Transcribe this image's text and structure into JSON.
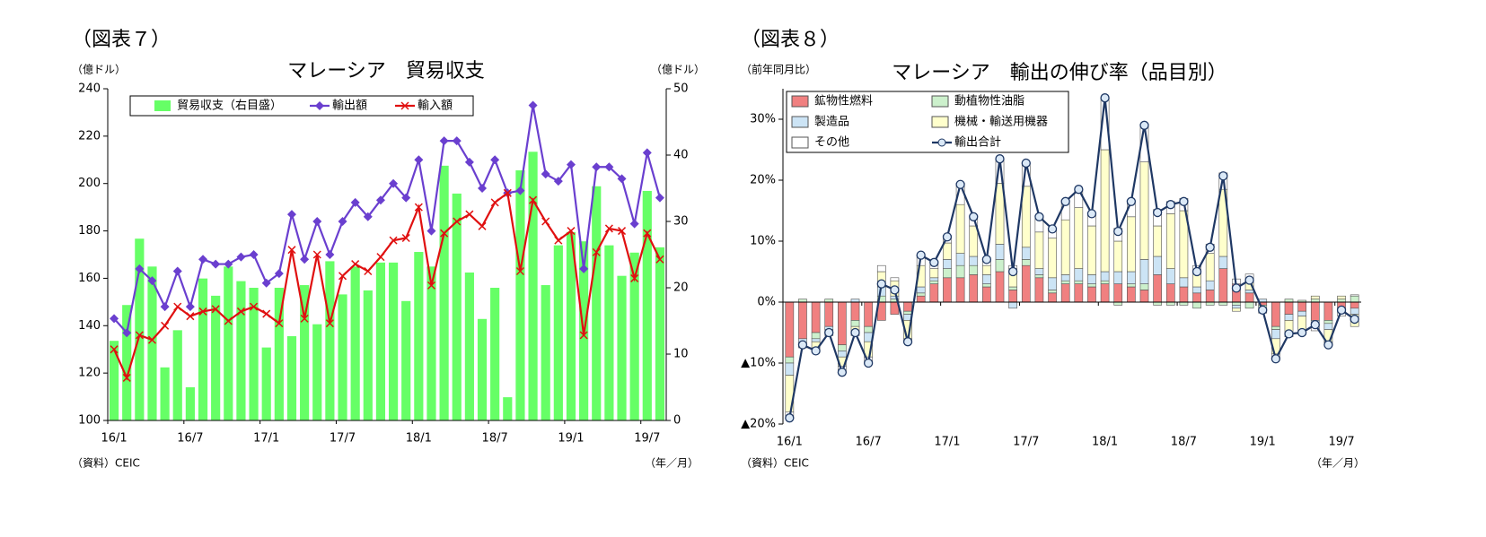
{
  "chart_data": [
    {
      "type": "bar_line",
      "figure_label": "（図表７）",
      "title": "マレーシア　貿易収支",
      "y_unit": "（億ドル）",
      "y2_unit": "（億ドル）",
      "source": "（資料）CEIC",
      "x_unit": "（年／月）",
      "categories": [
        "16/1",
        null,
        null,
        null,
        null,
        null,
        "16/7",
        null,
        null,
        null,
        null,
        null,
        "17/1",
        null,
        null,
        null,
        null,
        null,
        "17/7",
        null,
        null,
        null,
        null,
        null,
        "18/1",
        null,
        null,
        null,
        null,
        null,
        "18/7",
        null,
        null,
        null,
        null,
        null,
        "19/1",
        null,
        null,
        null,
        null,
        null,
        "19/7",
        null
      ],
      "ylim": [
        100,
        240
      ],
      "yticks": [
        100,
        120,
        140,
        160,
        180,
        200,
        220,
        240
      ],
      "y2lim": [
        0,
        50
      ],
      "y2ticks": [
        0,
        10,
        20,
        30,
        40,
        50
      ],
      "grid": false,
      "legend": "top",
      "series": [
        {
          "name": "貿易収支（右目盛）",
          "kind": "bar",
          "axis": "y2",
          "color": "#66ff66",
          "values": [
            12,
            17.4,
            27.4,
            23.2,
            8,
            13.6,
            5,
            21.4,
            18.8,
            23.2,
            21,
            20,
            11,
            20,
            12.7,
            20.4,
            14.5,
            24,
            19,
            23.2,
            19.6,
            23.8,
            23.8,
            18,
            25.4,
            23.2,
            38.4,
            34.2,
            22.3,
            15.3,
            20,
            3.5,
            37.7,
            40.5,
            20.4,
            26.4,
            28.4,
            27,
            35.3,
            26.4,
            21.8,
            25.3,
            34.6,
            26.1
          ]
        },
        {
          "name": "輸出額",
          "kind": "line",
          "marker": "diamond",
          "color": "#6a3fcf",
          "values": [
            143,
            137,
            164,
            159,
            148,
            163,
            148,
            168,
            166,
            166,
            169,
            170,
            158,
            162,
            187,
            168,
            184,
            170,
            184,
            192,
            186,
            193,
            200,
            194,
            210,
            180,
            218,
            218,
            209,
            198,
            210,
            196,
            197,
            233,
            204,
            201,
            208,
            164,
            207,
            207,
            202,
            183,
            213,
            194
          ]
        },
        {
          "name": "輸入額",
          "kind": "line",
          "marker": "x",
          "color": "#e01010",
          "values": [
            130,
            118,
            136,
            134,
            140,
            148,
            144,
            146,
            147,
            142,
            146,
            148,
            145,
            141,
            172,
            143,
            170,
            141,
            161,
            166,
            163,
            169,
            176,
            177,
            190,
            157,
            179,
            184,
            187,
            182,
            192,
            196,
            163,
            193,
            184,
            176,
            180,
            136,
            171,
            181,
            180,
            160,
            179,
            168
          ]
        }
      ]
    },
    {
      "type": "stacked_bar_line",
      "figure_label": "（図表８）",
      "title": "マレーシア　輸出の伸び率（品目別）",
      "y_unit": "（前年同月比）",
      "source": "（資料）CEIC",
      "x_unit": "（年／月）",
      "categories": [
        "16/1",
        null,
        null,
        null,
        null,
        null,
        "16/7",
        null,
        null,
        null,
        null,
        null,
        "17/1",
        null,
        null,
        null,
        null,
        null,
        "17/7",
        null,
        null,
        null,
        null,
        null,
        "18/1",
        null,
        null,
        null,
        null,
        null,
        "18/7",
        null,
        null,
        null,
        null,
        null,
        "19/1",
        null,
        null,
        null,
        null,
        null,
        "19/7",
        null
      ],
      "ylim": [
        -20,
        35
      ],
      "yticks": [
        {
          "value": -20,
          "label": "▲20%"
        },
        {
          "value": -10,
          "label": "▲10%"
        },
        {
          "value": 0,
          "label": "0%"
        },
        {
          "value": 10,
          "label": "10%"
        },
        {
          "value": 20,
          "label": "20%"
        },
        {
          "value": 30,
          "label": "30%"
        }
      ],
      "grid": false,
      "legend": "top-left",
      "series": [
        {
          "name": "鉱物性燃料",
          "kind": "bar",
          "color": "#f08080",
          "values": [
            -9,
            -6,
            -5,
            -4,
            -7,
            -3,
            -4,
            -3,
            -2,
            -1.5,
            1,
            3,
            4,
            4,
            4.5,
            2.5,
            5,
            2,
            6,
            4,
            1.5,
            3,
            3,
            2.5,
            3,
            3,
            2.5,
            2,
            4.5,
            3,
            2.5,
            1.5,
            2,
            5.5,
            3,
            1.5,
            -0.5,
            -4,
            -2,
            -1.5,
            -3,
            -3,
            -1,
            -1
          ]
        },
        {
          "name": "動植物性油脂",
          "kind": "bar",
          "color": "#ccf0cc",
          "values": [
            -1,
            0.5,
            -1,
            0.5,
            -1,
            -1,
            -1,
            1,
            0.5,
            -0.5,
            0.5,
            0.5,
            1.5,
            2,
            1.5,
            0.5,
            2,
            0.5,
            1,
            0.5,
            0.5,
            0.5,
            0.5,
            0.5,
            0.5,
            -0.5,
            0.5,
            1,
            -0.5,
            -0.5,
            -0.5,
            -1,
            -0.5,
            -0.5,
            -0.5,
            -1,
            -0.5,
            -0.5,
            0.5,
            0.3,
            0.5,
            -0.5,
            0.5,
            1
          ]
        },
        {
          "name": "製造品",
          "kind": "bar",
          "color": "#cce4f5",
          "values": [
            -2,
            -1,
            -0.5,
            -0.5,
            -1,
            0.5,
            -1.5,
            1.5,
            0.5,
            -1,
            1,
            0.5,
            1.5,
            2,
            1.5,
            1.5,
            2.5,
            -1,
            2,
            1,
            2,
            1,
            2,
            1.5,
            1.5,
            2,
            2,
            4,
            3,
            2.5,
            1.5,
            1,
            1.5,
            2,
            -0.5,
            0.5,
            0.5,
            -1.5,
            -1,
            -0.8,
            -0.5,
            -1,
            -0.5,
            -1
          ]
        },
        {
          "name": "機械・輸送用機器",
          "kind": "bar",
          "color": "#ffffcc",
          "values": [
            -6,
            -0.5,
            -1,
            -0.5,
            -1.5,
            -1,
            -2.5,
            2.5,
            2.5,
            -3,
            3.5,
            1.5,
            2.7,
            8,
            5,
            1.5,
            10,
            3,
            10,
            6,
            6.5,
            9,
            10,
            8,
            20,
            5,
            9,
            16,
            5,
            9,
            11,
            2.5,
            4.5,
            11,
            -0.5,
            1.5,
            -0.5,
            -2.5,
            -2,
            -2.5,
            0.5,
            -2,
            0.5,
            -2
          ]
        },
        {
          "name": "その他",
          "kind": "bar",
          "color": "#ffffff",
          "values": [
            -1,
            0,
            -0.5,
            -0.5,
            -1,
            -0.5,
            -1,
            1,
            0.5,
            -0.5,
            1.7,
            1,
            1,
            3.3,
            1.5,
            1,
            4,
            0.5,
            3.8,
            2.5,
            1.5,
            3,
            3,
            2,
            8.5,
            2.1,
            2.5,
            6,
            2.7,
            2,
            2,
            1,
            1.5,
            2.7,
            0.8,
            1.1,
            -0.3,
            -0.8,
            -0.7,
            -0.5,
            -1.2,
            -0.5,
            -0.8,
            0.2
          ]
        },
        {
          "name": "輸出合計",
          "kind": "line",
          "marker": "circle",
          "color": "#1f3864",
          "values": [
            -19,
            -7,
            -8,
            -5,
            -11.5,
            -5,
            -10,
            3,
            2,
            -6.5,
            7.7,
            6.5,
            10.7,
            19.3,
            14,
            7,
            23.5,
            5,
            22.8,
            14,
            12,
            16.5,
            18.5,
            14.5,
            33.5,
            11.6,
            16.5,
            29,
            14.7,
            16,
            16.5,
            5,
            9,
            20.7,
            2.3,
            3.6,
            -1.3,
            -9.3,
            -5.2,
            -5,
            -3.7,
            -7,
            -1.3,
            -2.8
          ]
        }
      ]
    }
  ]
}
